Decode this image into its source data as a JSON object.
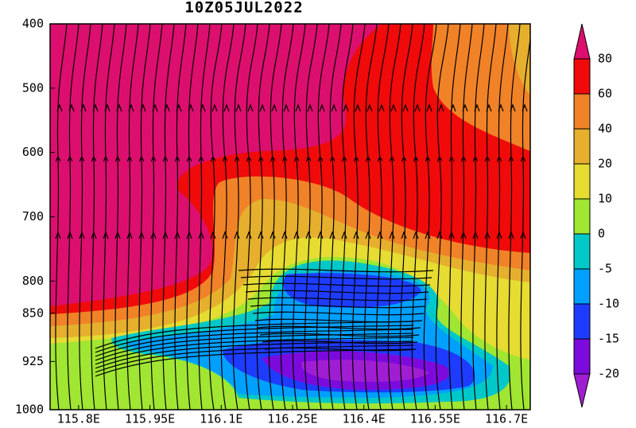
{
  "chart_data": {
    "type": "contour",
    "title": "10Z05JUL2022",
    "xlim": [
      115.74,
      116.75
    ],
    "xticks": [
      {
        "value": 115.8,
        "label": "115.8E"
      },
      {
        "value": 115.95,
        "label": "115.95E"
      },
      {
        "value": 116.1,
        "label": "116.1E"
      },
      {
        "value": 116.25,
        "label": "116.25E"
      },
      {
        "value": 116.4,
        "label": "116.4E"
      },
      {
        "value": 116.55,
        "label": "116.55E"
      },
      {
        "value": 116.7,
        "label": "116.7E"
      }
    ],
    "ylim": [
      400,
      1000
    ],
    "yticks": [
      400,
      500,
      600,
      700,
      800,
      850,
      925,
      1000
    ],
    "colorbar": {
      "levels": [
        -20,
        -15,
        -10,
        -5,
        0,
        10,
        20,
        40,
        60,
        80
      ],
      "colors": [
        "#a01ed2",
        "#7d0adc",
        "#1e3cff",
        "#00a0ff",
        "#00c8c8",
        "#a0e632",
        "#e6dc32",
        "#e6af2d",
        "#f08228",
        "#f00a0a",
        "#dc0f6e"
      ]
    }
  }
}
